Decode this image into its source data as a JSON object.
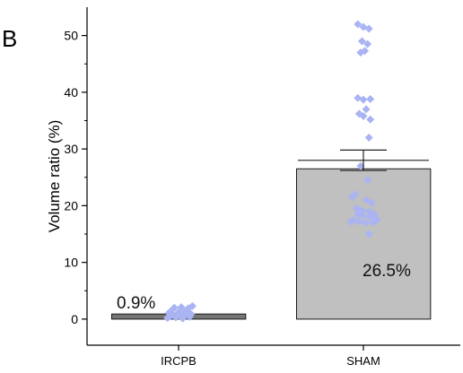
{
  "panel_label": "B",
  "chart_data": {
    "type": "bar",
    "title": "",
    "xlabel": "",
    "ylabel": "Volume ratio (%)",
    "ylim": [
      -4.6,
      55
    ],
    "yticks": [
      0,
      10,
      20,
      30,
      40,
      50
    ],
    "categories": [
      "IRCPB",
      "SHAM"
    ],
    "values": [
      0.9,
      26.5
    ],
    "error_upper": [
      null,
      29.8
    ],
    "error_lower": [
      null,
      26.2
    ],
    "error_cap_inner": [
      null,
      28.0
    ],
    "bar_colors": [
      "#767676",
      "#c0c0c0"
    ],
    "point_color": "#aab4f2",
    "data_labels": [
      "0.9%",
      "26.5%"
    ],
    "points": [
      [
        [
          -0.08,
          0.2
        ],
        [
          -0.06,
          0.5
        ],
        [
          -0.04,
          1.8
        ],
        [
          -0.02,
          0.3
        ],
        [
          0.0,
          1.2
        ],
        [
          0.02,
          2.1
        ],
        [
          0.04,
          0.8
        ],
        [
          0.06,
          1.5
        ],
        [
          0.08,
          0.4
        ],
        [
          0.1,
          2.3
        ],
        [
          -0.05,
          1.0
        ],
        [
          0.03,
          0.1
        ],
        [
          0.07,
          1.9
        ],
        [
          -0.03,
          2.0
        ],
        [
          0.01,
          0.6
        ],
        [
          0.05,
          1.4
        ],
        [
          -0.07,
          1.1
        ],
        [
          0.09,
          0.9
        ]
      ],
      [
        [
          -0.04,
          52.0
        ],
        [
          0.0,
          51.5
        ],
        [
          0.04,
          51.2
        ],
        [
          -0.01,
          49.0
        ],
        [
          0.03,
          48.5
        ],
        [
          -0.02,
          47.0
        ],
        [
          0.01,
          47.3
        ],
        [
          -0.04,
          39.0
        ],
        [
          0.0,
          38.7
        ],
        [
          0.05,
          38.8
        ],
        [
          0.02,
          37.0
        ],
        [
          -0.03,
          36.2
        ],
        [
          0.0,
          35.8
        ],
        [
          0.05,
          35.2
        ],
        [
          0.04,
          32.0
        ],
        [
          -0.02,
          27.0
        ],
        [
          0.03,
          24.5
        ],
        [
          -0.08,
          21.5
        ],
        [
          0.02,
          21.0
        ],
        [
          0.06,
          20.5
        ],
        [
          -0.05,
          19.5
        ],
        [
          -0.01,
          19.2
        ],
        [
          0.04,
          19.0
        ],
        [
          -0.04,
          18.5
        ],
        [
          0.0,
          18.2
        ],
        [
          0.05,
          18.0
        ],
        [
          -0.07,
          17.5
        ],
        [
          0.1,
          17.6
        ],
        [
          -0.03,
          17.2
        ],
        [
          0.02,
          17.0
        ],
        [
          0.07,
          17.0
        ],
        [
          -0.09,
          17.2
        ],
        [
          0.04,
          15.0
        ],
        [
          -0.06,
          22.0
        ],
        [
          0.08,
          18.5
        ]
      ]
    ]
  }
}
